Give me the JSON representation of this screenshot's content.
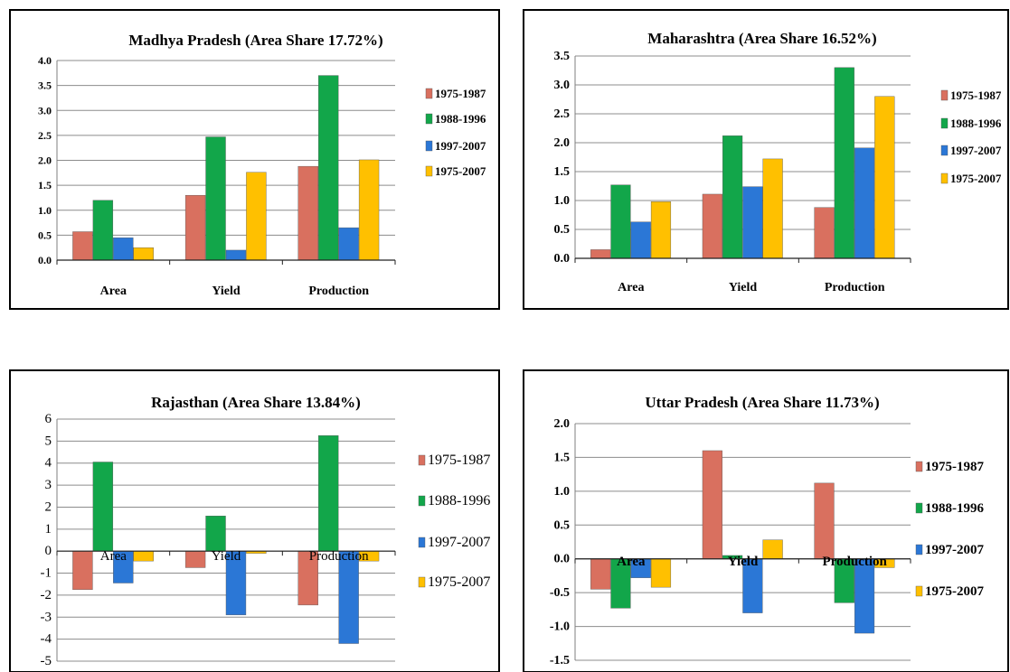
{
  "series_colors": [
    "#d9705f",
    "#12a64a",
    "#2b77d6",
    "#ffc000"
  ],
  "chart_data": [
    {
      "type": "bar",
      "title": "Madhya Pradesh (Area Share 17.72%)",
      "categories": [
        "Area",
        "Yield",
        "Production"
      ],
      "series": [
        {
          "name": "1975-1987",
          "values": [
            0.57,
            1.3,
            1.88
          ]
        },
        {
          "name": "1988-1996",
          "values": [
            1.2,
            2.47,
            3.7
          ]
        },
        {
          "name": "1997-2007",
          "values": [
            0.45,
            0.2,
            0.65
          ]
        },
        {
          "name": "1975-2007",
          "values": [
            0.25,
            1.76,
            2.01
          ]
        }
      ],
      "ylim": [
        0,
        4
      ],
      "yticks": [
        "4.0",
        "3.5",
        "3.0",
        "2.5",
        "2.0",
        "1.5",
        "1.0",
        "0.5",
        "0.0"
      ],
      "grid": true,
      "legend": "right"
    },
    {
      "type": "bar",
      "title": "Maharashtra (Area Share 16.52%)",
      "categories": [
        "Area",
        "Yield",
        "Production"
      ],
      "series": [
        {
          "name": "1975-1987",
          "values": [
            0.15,
            1.11,
            0.88
          ]
        },
        {
          "name": "1988-1996",
          "values": [
            1.27,
            2.12,
            3.3
          ]
        },
        {
          "name": "1997-2007",
          "values": [
            0.63,
            1.24,
            1.91
          ]
        },
        {
          "name": "1975-2007",
          "values": [
            0.98,
            1.72,
            2.8
          ]
        }
      ],
      "ylim": [
        0,
        3.5
      ],
      "yticks": [
        "3.5",
        "3.0",
        "2.5",
        "2.0",
        "1.5",
        "1.0",
        "0.5",
        "0.0"
      ],
      "grid": true,
      "legend": "right"
    },
    {
      "type": "bar",
      "title": "Rajasthan (Area Share 13.84%)",
      "categories": [
        "Area",
        "Yield",
        "Production"
      ],
      "series": [
        {
          "name": "1975-1987",
          "values": [
            -1.75,
            -0.75,
            -2.45
          ]
        },
        {
          "name": "1988-1996",
          "values": [
            4.05,
            1.6,
            5.25
          ]
        },
        {
          "name": "1997-2007",
          "values": [
            -1.45,
            -2.9,
            -4.2
          ]
        },
        {
          "name": "1975-2007",
          "values": [
            -0.45,
            -0.1,
            -0.45
          ]
        }
      ],
      "ylim": [
        -5,
        6
      ],
      "yticks": [
        "6",
        "5",
        "4",
        "3",
        "2",
        "1",
        "0",
        "-1",
        "-2",
        "-3",
        "-4",
        "-5"
      ],
      "grid": true,
      "legend": "right"
    },
    {
      "type": "bar",
      "title": "Uttar Pradesh (Area Share 11.73%)",
      "categories": [
        "Area",
        "Yield",
        "Production"
      ],
      "series": [
        {
          "name": "1975-1987",
          "values": [
            -0.45,
            1.6,
            1.12
          ]
        },
        {
          "name": "1988-1996",
          "values": [
            -0.73,
            0.05,
            -0.65
          ]
        },
        {
          "name": "1997-2007",
          "values": [
            -0.28,
            -0.8,
            -1.1
          ]
        },
        {
          "name": "1975-2007",
          "values": [
            -0.42,
            0.28,
            -0.13
          ]
        }
      ],
      "ylim": [
        -1.5,
        2
      ],
      "yticks": [
        "2.0",
        "1.5",
        "1.0",
        "0.5",
        "0.0",
        "-0.5",
        "-1.0",
        "-1.5"
      ],
      "grid": true,
      "legend": "right"
    }
  ]
}
